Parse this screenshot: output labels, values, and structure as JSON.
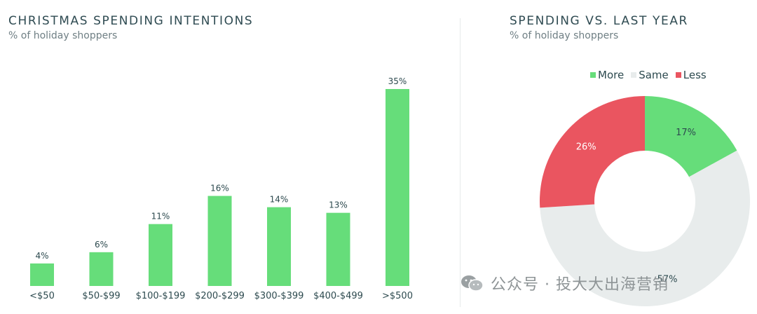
{
  "left_panel": {
    "title": "CHRISTMAS SPENDING INTENTIONS",
    "subtitle": "% of holiday shoppers"
  },
  "right_panel": {
    "title": "SPENDING VS. LAST YEAR",
    "subtitle": "% of holiday shoppers"
  },
  "watermark": {
    "text": "公众号 · 投大大出海营销",
    "icon": "wechat-icon"
  },
  "colors": {
    "more": "#66dd7a",
    "same": "#e8ecec",
    "less": "#ea5560",
    "bar": "#66dd7a"
  },
  "chart_data": [
    {
      "type": "bar",
      "title": "CHRISTMAS SPENDING INTENTIONS",
      "subtitle": "% of holiday shoppers",
      "categories": [
        "<$50",
        "$50-$99",
        "$100-$199",
        "$200-$299",
        "$300-$399",
        "$400-$499",
        ">$500"
      ],
      "values": [
        4,
        6,
        11,
        16,
        14,
        13,
        35
      ],
      "value_labels": [
        "4%",
        "6%",
        "11%",
        "16%",
        "14%",
        "13%",
        "35%"
      ],
      "ylim": [
        0,
        35
      ],
      "grid": false,
      "legend": "none"
    },
    {
      "type": "pie",
      "title": "SPENDING VS. LAST YEAR",
      "subtitle": "% of holiday shoppers",
      "donut": true,
      "labels": [
        "More",
        "Same",
        "Less"
      ],
      "values": [
        17,
        57,
        26
      ],
      "value_labels": [
        "17%",
        "57%",
        "26%"
      ],
      "legend": "top"
    }
  ]
}
